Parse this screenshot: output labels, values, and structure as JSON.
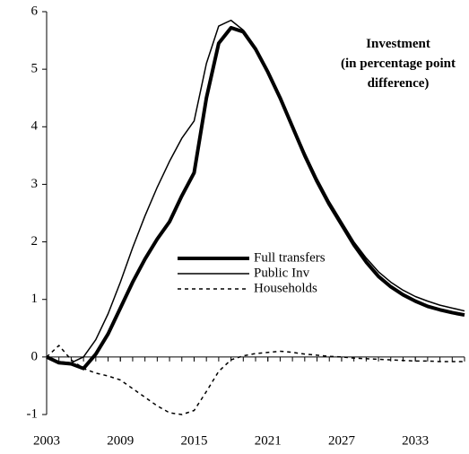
{
  "chart_data": {
    "type": "line",
    "title": "Investment",
    "subtitle": "(in percentage point difference)",
    "x": [
      2003,
      2004,
      2005,
      2006,
      2007,
      2008,
      2009,
      2010,
      2011,
      2012,
      2013,
      2014,
      2015,
      2016,
      2017,
      2018,
      2019,
      2020,
      2021,
      2022,
      2023,
      2024,
      2025,
      2026,
      2027,
      2028,
      2029,
      2030,
      2031,
      2032,
      2033,
      2034,
      2035,
      2036,
      2037
    ],
    "series": [
      {
        "name": "Full transfers",
        "color": "#000000",
        "line_width": 4,
        "dashed": false,
        "values": [
          0,
          -0.1,
          -0.12,
          -0.2,
          0.05,
          0.4,
          0.85,
          1.3,
          1.7,
          2.05,
          2.35,
          2.8,
          3.2,
          4.5,
          5.45,
          5.72,
          5.65,
          5.35,
          4.95,
          4.5,
          4.0,
          3.5,
          3.05,
          2.65,
          2.3,
          1.95,
          1.65,
          1.4,
          1.22,
          1.08,
          0.97,
          0.88,
          0.82,
          0.77,
          0.73
        ]
      },
      {
        "name": "Public Inv",
        "color": "#000000",
        "line_width": 1.5,
        "dashed": false,
        "values": [
          0,
          -0.08,
          -0.1,
          0.0,
          0.3,
          0.75,
          1.3,
          1.9,
          2.45,
          2.95,
          3.4,
          3.8,
          4.1,
          5.1,
          5.75,
          5.85,
          5.68,
          5.38,
          4.98,
          4.52,
          4.03,
          3.55,
          3.1,
          2.7,
          2.35,
          2.0,
          1.72,
          1.48,
          1.3,
          1.16,
          1.05,
          0.97,
          0.9,
          0.85,
          0.8
        ]
      },
      {
        "name": "Households",
        "color": "#000000",
        "line_width": 1.5,
        "dashed": true,
        "values": [
          0,
          0.2,
          -0.05,
          -0.2,
          -0.28,
          -0.33,
          -0.4,
          -0.55,
          -0.7,
          -0.85,
          -0.97,
          -1.0,
          -0.93,
          -0.6,
          -0.25,
          -0.05,
          0.02,
          0.06,
          0.08,
          0.1,
          0.08,
          0.05,
          0.03,
          0.01,
          0.0,
          -0.02,
          -0.03,
          -0.04,
          -0.05,
          -0.06,
          -0.07,
          -0.07,
          -0.08,
          -0.08,
          -0.08
        ]
      }
    ],
    "xlim": [
      2003,
      2037
    ],
    "xticks": [
      2003,
      2009,
      2015,
      2021,
      2027,
      2033
    ],
    "ylim": [
      -1,
      6
    ],
    "yticks": [
      -1,
      0,
      1,
      2,
      3,
      4,
      5,
      6
    ],
    "grid": false
  }
}
